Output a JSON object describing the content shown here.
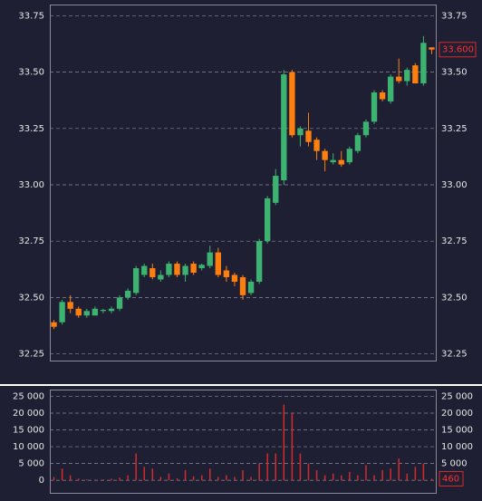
{
  "chart_data": {
    "type": "candlestick",
    "up_color": "#3cb371",
    "down_color": "#ff7f0e",
    "open": [
      32.39,
      32.39,
      32.48,
      32.45,
      32.42,
      32.42,
      32.44,
      32.44,
      32.45,
      32.5,
      32.52,
      32.6,
      32.63,
      32.58,
      32.6,
      32.65,
      32.6,
      32.65,
      32.63,
      32.64,
      32.7,
      32.62,
      32.6,
      32.59,
      32.52,
      32.57,
      32.75,
      32.92,
      33.02,
      33.5,
      33.22,
      33.24,
      33.2,
      33.15,
      33.1,
      33.11,
      33.1,
      33.15,
      33.22,
      33.28,
      33.41,
      33.37,
      33.48,
      33.46,
      33.53,
      33.45,
      33.61
    ],
    "high": [
      32.4,
      32.49,
      32.51,
      32.46,
      32.45,
      32.46,
      32.45,
      32.46,
      32.51,
      32.54,
      32.64,
      32.65,
      32.65,
      32.62,
      32.66,
      32.66,
      32.65,
      32.66,
      32.65,
      32.73,
      32.72,
      32.64,
      32.61,
      32.6,
      32.58,
      32.76,
      32.95,
      33.07,
      33.51,
      33.51,
      33.26,
      33.32,
      33.21,
      33.16,
      33.14,
      33.15,
      33.17,
      33.23,
      33.29,
      33.42,
      33.42,
      33.49,
      33.56,
      33.52,
      33.54,
      33.66,
      33.61
    ],
    "low": [
      32.36,
      32.38,
      32.43,
      32.41,
      32.41,
      32.42,
      32.43,
      32.43,
      32.44,
      32.49,
      32.51,
      32.59,
      32.58,
      32.57,
      32.59,
      32.59,
      32.57,
      32.6,
      32.62,
      32.63,
      32.59,
      32.57,
      32.55,
      32.49,
      32.51,
      32.56,
      32.74,
      32.91,
      33.0,
      33.21,
      33.17,
      33.17,
      33.11,
      33.06,
      33.09,
      33.08,
      33.09,
      33.14,
      33.21,
      33.27,
      33.37,
      33.36,
      33.45,
      33.44,
      33.45,
      33.44,
      33.58
    ],
    "close": [
      32.37,
      32.48,
      32.45,
      32.42,
      32.44,
      32.45,
      32.445,
      32.45,
      32.5,
      32.53,
      32.63,
      32.64,
      32.59,
      32.6,
      32.65,
      32.6,
      32.64,
      32.61,
      32.645,
      32.7,
      32.6,
      32.59,
      32.57,
      32.51,
      32.57,
      32.75,
      32.94,
      33.04,
      33.49,
      33.22,
      33.25,
      33.19,
      33.15,
      33.11,
      33.11,
      33.09,
      33.16,
      33.22,
      33.28,
      33.41,
      33.38,
      33.48,
      33.46,
      33.51,
      33.45,
      33.63,
      33.6
    ],
    "ylim": [
      32.22,
      33.8
    ],
    "yticks": [
      {
        "value": 33.75,
        "label": "33.75"
      },
      {
        "value": 33.5,
        "label": "33.50"
      },
      {
        "value": 33.25,
        "label": "33.25"
      },
      {
        "value": 33,
        "label": "33.00"
      },
      {
        "value": 32.75,
        "label": "32.75"
      },
      {
        "value": 32.5,
        "label": "32.50"
      },
      {
        "value": 32.25,
        "label": "32.25"
      }
    ],
    "last_price": {
      "value": 33.6,
      "label": "33.600"
    },
    "volume": {
      "color": "#d42a2a",
      "values": [
        1000,
        3500,
        1500,
        500,
        300,
        200,
        300,
        500,
        800,
        1500,
        8000,
        4000,
        3500,
        1000,
        2000,
        600,
        3000,
        1200,
        1500,
        3500,
        1000,
        1500,
        1000,
        3000,
        1000,
        5000,
        8000,
        8000,
        22500,
        20000,
        8000,
        5000,
        3000,
        1500,
        2000,
        1500,
        2500,
        1500,
        4500,
        1500,
        3000,
        3500,
        6500,
        2000,
        4000,
        5000,
        460
      ],
      "ylim": [
        -4000,
        27000
      ],
      "yticks": [
        {
          "value": 25000,
          "label": "25 000"
        },
        {
          "value": 20000,
          "label": "20 000"
        },
        {
          "value": 15000,
          "label": "15 000"
        },
        {
          "value": 10000,
          "label": "10 000"
        },
        {
          "value": 5000,
          "label": "5 000"
        },
        0
      ],
      "last": 460
    }
  }
}
